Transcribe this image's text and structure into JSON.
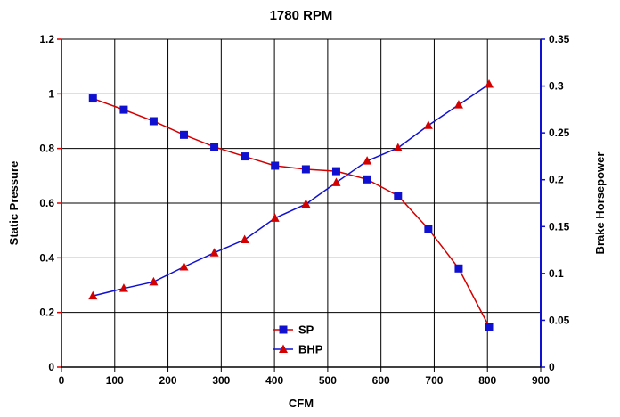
{
  "chart_data": {
    "type": "line",
    "title": "1780 RPM",
    "xlabel": "CFM",
    "ylabel_left": "Static Pressure",
    "ylabel_right": "Brake Horsepower",
    "xlim": [
      0,
      900
    ],
    "xticks": [
      0,
      100,
      200,
      300,
      400,
      500,
      600,
      700,
      800,
      900
    ],
    "ylim_left": [
      0,
      1.2
    ],
    "yticks_left": [
      0,
      0.2,
      0.4,
      0.6,
      0.8,
      1,
      1.2
    ],
    "ylim_right": [
      0,
      0.35
    ],
    "yticks_right": [
      0,
      0.05,
      0.1,
      0.15,
      0.2,
      0.25,
      0.3,
      0.35
    ],
    "grid": true,
    "legend_position": "bottom-center",
    "series": [
      {
        "name": "SP",
        "axis": "left",
        "marker": "square",
        "line_color": "#d40000",
        "marker_color": "#1010d0",
        "x": [
          59,
          117,
          173,
          230,
          287,
          344,
          401,
          459,
          516,
          574,
          632,
          689,
          746,
          803
        ],
        "y": [
          0.983,
          0.942,
          0.9,
          0.85,
          0.806,
          0.771,
          0.737,
          0.724,
          0.717,
          0.687,
          0.627,
          0.506,
          0.361,
          0.148
        ]
      },
      {
        "name": "BHP",
        "axis": "right",
        "marker": "triangle",
        "line_color": "#1010d0",
        "marker_color": "#d40000",
        "x": [
          59,
          117,
          173,
          230,
          287,
          344,
          401,
          459,
          516,
          574,
          632,
          689,
          746,
          803
        ],
        "y": [
          0.076,
          0.084,
          0.091,
          0.107,
          0.122,
          0.136,
          0.159,
          0.174,
          0.197,
          0.22,
          0.234,
          0.258,
          0.28,
          0.302
        ]
      }
    ]
  }
}
